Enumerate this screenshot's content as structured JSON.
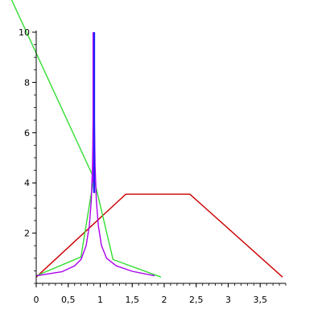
{
  "chart_data": {
    "type": "line",
    "title": "",
    "xlabel": "",
    "ylabel": "",
    "xlim": [
      0,
      3.9
    ],
    "ylim": [
      0,
      10
    ],
    "grid": false,
    "legend": "none",
    "x_ticks": [
      {
        "value": 0,
        "label": "0"
      },
      {
        "value": 0.5,
        "label": "0,5"
      },
      {
        "value": 1,
        "label": "1"
      },
      {
        "value": 1.5,
        "label": "1,5"
      },
      {
        "value": 2,
        "label": "2"
      },
      {
        "value": 2.5,
        "label": "2,5"
      },
      {
        "value": 3,
        "label": "3"
      },
      {
        "value": 3.5,
        "label": "3,5"
      }
    ],
    "y_ticks": [
      {
        "value": 2,
        "label": "2"
      },
      {
        "value": 4,
        "label": "4"
      },
      {
        "value": 6,
        "label": "6"
      },
      {
        "value": 8,
        "label": "8"
      },
      {
        "value": 10,
        "label": "10"
      }
    ],
    "series": [
      {
        "color": "#cc0000",
        "points": [
          [
            0,
            0.25
          ],
          [
            1.4,
            3.55
          ],
          [
            2.4,
            3.55
          ],
          [
            3.85,
            0.25
          ]
        ]
      },
      {
        "color": "#33dd33",
        "points": [
          [
            -0.55,
            12.2
          ],
          [
            0.9,
            4.2
          ],
          [
            1.2,
            0.95
          ],
          [
            1.95,
            0.25
          ]
        ]
      },
      {
        "color": "#33dd33",
        "points": [
          [
            0,
            0.3
          ],
          [
            0.7,
            1.05
          ],
          [
            0.9,
            4.2
          ],
          [
            0.9,
            10
          ]
        ]
      },
      {
        "color": "#aa00ee",
        "points": [
          [
            0,
            0.3
          ],
          [
            0.4,
            0.46
          ],
          [
            0.6,
            0.7
          ],
          [
            0.7,
            0.95
          ],
          [
            0.78,
            1.5
          ],
          [
            0.83,
            2.3
          ],
          [
            0.86,
            3.3
          ],
          [
            0.88,
            4.7
          ],
          [
            0.89,
            6.5
          ],
          [
            0.9,
            10
          ]
        ]
      },
      {
        "color": "#aa00ee",
        "points": [
          [
            0.9,
            10
          ],
          [
            0.91,
            6.5
          ],
          [
            0.92,
            4.7
          ],
          [
            0.94,
            3.3
          ],
          [
            0.97,
            2.3
          ],
          [
            1.02,
            1.5
          ],
          [
            1.1,
            1.0
          ],
          [
            1.25,
            0.7
          ],
          [
            1.5,
            0.48
          ],
          [
            1.85,
            0.3
          ]
        ]
      },
      {
        "color": "#ee00ee",
        "points": [
          [
            0.895,
            4.0
          ],
          [
            0.895,
            10
          ]
        ]
      },
      {
        "color": "#2222ff",
        "points": [
          [
            0.905,
            3.6
          ],
          [
            0.905,
            10
          ]
        ]
      }
    ]
  }
}
